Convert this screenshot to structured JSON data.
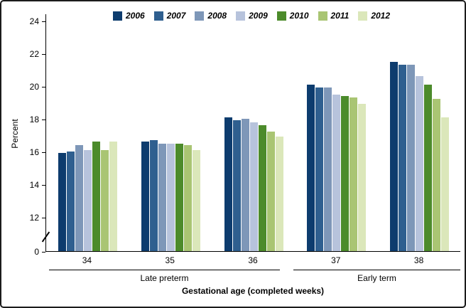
{
  "chart_data": {
    "type": "bar",
    "title": "",
    "ylabel": "Percent",
    "xlabel": "Gestational age (completed weeks)",
    "categories": [
      "34",
      "35",
      "36",
      "37",
      "38"
    ],
    "category_groups": [
      {
        "label": "Late preterm",
        "categories": [
          "34",
          "35",
          "36"
        ]
      },
      {
        "label": "Early term",
        "categories": [
          "37",
          "38"
        ]
      }
    ],
    "y_ticks": [
      0,
      12,
      14,
      16,
      18,
      20,
      22,
      24
    ],
    "y_axis_break": true,
    "ylim": [
      0,
      24
    ],
    "grid": false,
    "legend_position": "top",
    "series": [
      {
        "name": "2006",
        "color": "#0d3c6e",
        "values": [
          15.9,
          16.6,
          18.1,
          20.1,
          21.5
        ]
      },
      {
        "name": "2007",
        "color": "#2f5f8f",
        "values": [
          16.0,
          16.7,
          17.9,
          19.9,
          21.3
        ]
      },
      {
        "name": "2008",
        "color": "#7e97b8",
        "values": [
          16.4,
          16.5,
          18.0,
          19.9,
          21.3
        ]
      },
      {
        "name": "2009",
        "color": "#b7c3dc",
        "values": [
          16.1,
          16.5,
          17.8,
          19.5,
          20.6
        ]
      },
      {
        "name": "2010",
        "color": "#4c8b2b",
        "values": [
          16.6,
          16.5,
          17.6,
          19.4,
          20.1
        ]
      },
      {
        "name": "2011",
        "color": "#a9c573",
        "values": [
          16.1,
          16.4,
          17.2,
          19.3,
          19.2
        ]
      },
      {
        "name": "2012",
        "color": "#dbe7ba",
        "values": [
          16.6,
          16.1,
          16.9,
          18.9,
          18.1
        ]
      }
    ]
  }
}
